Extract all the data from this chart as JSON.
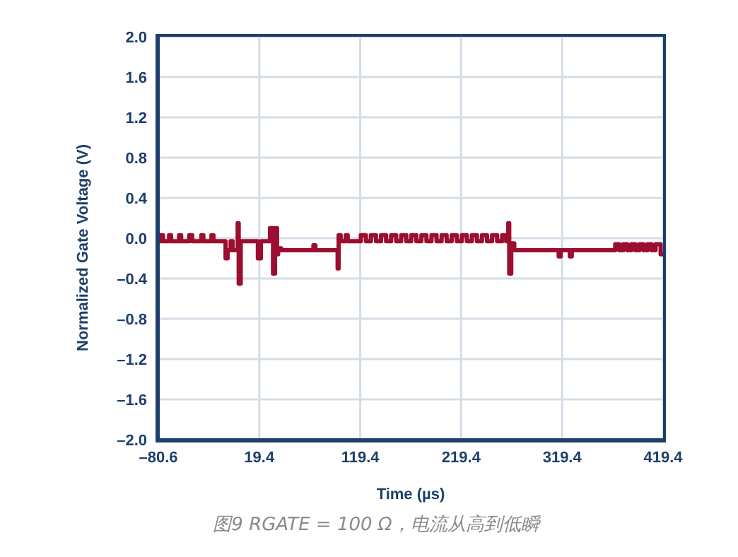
{
  "chart_data": {
    "type": "line",
    "xlabel": "Time (µs)",
    "ylabel": "Normalized Gate Voltage (V)",
    "annotations": [
      "图9 RGATE = 100 Ω，电流从高到低瞬"
    ],
    "xlim": [
      -80.6,
      419.4
    ],
    "xticks": [
      {
        "value": -80.6,
        "label": "–80.6"
      },
      19.4,
      119.4,
      219.4,
      319.4,
      419.4
    ],
    "ylim": [
      -2.0,
      2.0
    ],
    "yticks": [
      {
        "value": -2.0,
        "label": "–2.0"
      },
      {
        "value": -1.6,
        "label": "–1.6"
      },
      {
        "value": -1.2,
        "label": "–1.2"
      },
      {
        "value": -0.8,
        "label": "–0.8"
      },
      {
        "value": -0.4,
        "label": "–0.4"
      },
      "0.0",
      "0.4",
      "0.8",
      "1.2",
      "1.6",
      "2.0"
    ],
    "grid": true,
    "legend": false,
    "marker": "none",
    "line_style": "solid",
    "series": [
      {
        "color": "#9b0e2f",
        "x": [
          -80.6,
          -78,
          -78,
          -76,
          -76,
          -70,
          -70,
          -68,
          -68,
          -60,
          -60,
          -58,
          -58,
          -50,
          -50,
          -47,
          -47,
          -38,
          -38,
          -36,
          -36,
          -28,
          -28,
          -26,
          -26,
          -14,
          -14,
          -12,
          -12,
          -9,
          -9,
          -7,
          -7,
          -2,
          -2,
          -1,
          -1,
          1,
          1,
          18,
          18,
          21,
          21,
          30,
          30,
          33,
          33,
          35,
          35,
          37,
          37,
          38,
          38,
          41,
          41,
          73,
          73,
          75,
          75,
          97,
          97,
          98,
          98,
          100,
          100,
          105,
          105,
          107,
          107,
          120,
          120,
          125,
          125,
          130,
          130,
          135,
          135,
          140,
          140,
          145,
          145,
          150,
          150,
          155,
          155,
          160,
          160,
          165,
          165,
          170,
          170,
          175,
          175,
          180,
          180,
          185,
          185,
          190,
          190,
          195,
          195,
          200,
          200,
          205,
          205,
          210,
          210,
          215,
          215,
          220,
          220,
          225,
          225,
          230,
          230,
          235,
          235,
          240,
          240,
          245,
          245,
          250,
          250,
          255,
          255,
          260,
          260,
          264,
          264,
          266,
          266,
          267,
          267,
          269,
          269,
          272,
          272,
          316,
          316,
          318,
          318,
          327,
          327,
          329,
          329,
          372,
          372,
          376,
          376,
          380,
          380,
          384,
          384,
          388,
          388,
          392,
          392,
          396,
          396,
          400,
          400,
          404,
          404,
          408,
          408,
          412,
          412,
          417,
          417,
          419.4
        ],
        "values": [
          -0.03,
          -0.03,
          0.03,
          0.03,
          -0.03,
          -0.03,
          0.03,
          0.03,
          -0.03,
          -0.03,
          0.03,
          0.03,
          -0.03,
          -0.03,
          0.03,
          0.03,
          -0.03,
          -0.03,
          0.03,
          0.03,
          -0.03,
          -0.03,
          0.03,
          0.03,
          -0.03,
          -0.03,
          -0.2,
          -0.2,
          -0.12,
          -0.12,
          -0.03,
          -0.03,
          -0.12,
          -0.12,
          0.15,
          0.15,
          -0.45,
          -0.45,
          -0.03,
          -0.03,
          -0.2,
          -0.2,
          -0.03,
          -0.03,
          0.1,
          0.1,
          -0.35,
          -0.35,
          0.1,
          0.1,
          -0.16,
          -0.16,
          -0.1,
          -0.1,
          -0.12,
          -0.12,
          -0.07,
          -0.07,
          -0.12,
          -0.12,
          -0.3,
          -0.3,
          0.03,
          0.03,
          -0.03,
          -0.03,
          0.03,
          0.03,
          -0.03,
          -0.03,
          0.03,
          0.03,
          -0.03,
          -0.03,
          0.03,
          0.03,
          -0.03,
          -0.03,
          0.03,
          0.03,
          -0.03,
          -0.03,
          0.03,
          0.03,
          -0.03,
          -0.03,
          0.03,
          0.03,
          -0.03,
          -0.03,
          0.03,
          0.03,
          -0.03,
          -0.03,
          0.03,
          0.03,
          -0.03,
          -0.03,
          0.03,
          0.03,
          -0.03,
          -0.03,
          0.03,
          0.03,
          -0.03,
          -0.03,
          0.03,
          0.03,
          -0.03,
          -0.03,
          0.03,
          0.03,
          -0.03,
          -0.03,
          0.03,
          0.03,
          -0.03,
          -0.03,
          0.03,
          0.03,
          -0.03,
          -0.03,
          0.03,
          0.03,
          -0.03,
          -0.03,
          0.03,
          0.03,
          -0.03,
          -0.03,
          0.15,
          0.15,
          -0.35,
          -0.35,
          -0.05,
          -0.05,
          -0.12,
          -0.12,
          -0.18,
          -0.18,
          -0.12,
          -0.12,
          -0.18,
          -0.18,
          -0.12,
          -0.12,
          -0.06,
          -0.06,
          -0.12,
          -0.12,
          -0.06,
          -0.06,
          -0.12,
          -0.12,
          -0.06,
          -0.06,
          -0.12,
          -0.12,
          -0.06,
          -0.06,
          -0.12,
          -0.12,
          -0.06,
          -0.06,
          -0.12,
          -0.12,
          -0.06,
          -0.06,
          -0.16,
          -0.16
        ]
      }
    ]
  }
}
